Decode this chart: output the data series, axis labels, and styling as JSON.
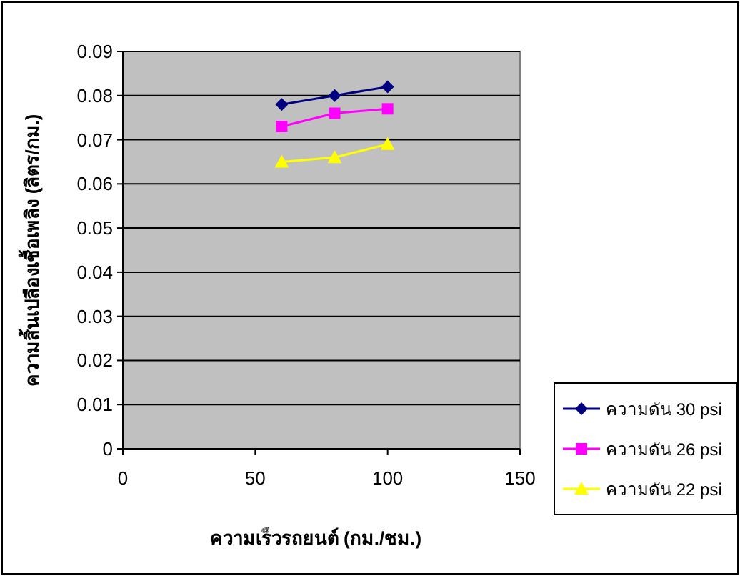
{
  "chart_data": {
    "type": "line",
    "xlabel": "ความเร็วรถยนต์ (กม./ชม.)",
    "ylabel": "ความสิ้นเปลืองเชื้อเพลิง (ลิตร/กม.)",
    "xlim": [
      0,
      150
    ],
    "xticks": [
      0,
      50,
      100,
      150
    ],
    "ylim": [
      0,
      0.09
    ],
    "yticks": [
      0,
      0.01,
      0.02,
      0.03,
      0.04,
      0.05,
      0.06,
      0.07,
      0.08,
      0.09
    ],
    "grid": "y",
    "legend": "right",
    "line_style": "solid",
    "series": [
      {
        "name": "ความดัน 30 psi",
        "color": "#000080",
        "marker": "diamond",
        "x": [
          60,
          80,
          100
        ],
        "values": [
          0.078,
          0.08,
          0.082
        ]
      },
      {
        "name": "ความดัน 26 psi",
        "color": "#ff00ff",
        "marker": "square",
        "x": [
          60,
          80,
          100
        ],
        "values": [
          0.073,
          0.076,
          0.077
        ]
      },
      {
        "name": "ความดัน 22 psi",
        "color": "#ffff00",
        "marker": "triangle",
        "x": [
          60,
          80,
          100
        ],
        "values": [
          0.065,
          0.066,
          0.069
        ]
      }
    ]
  }
}
